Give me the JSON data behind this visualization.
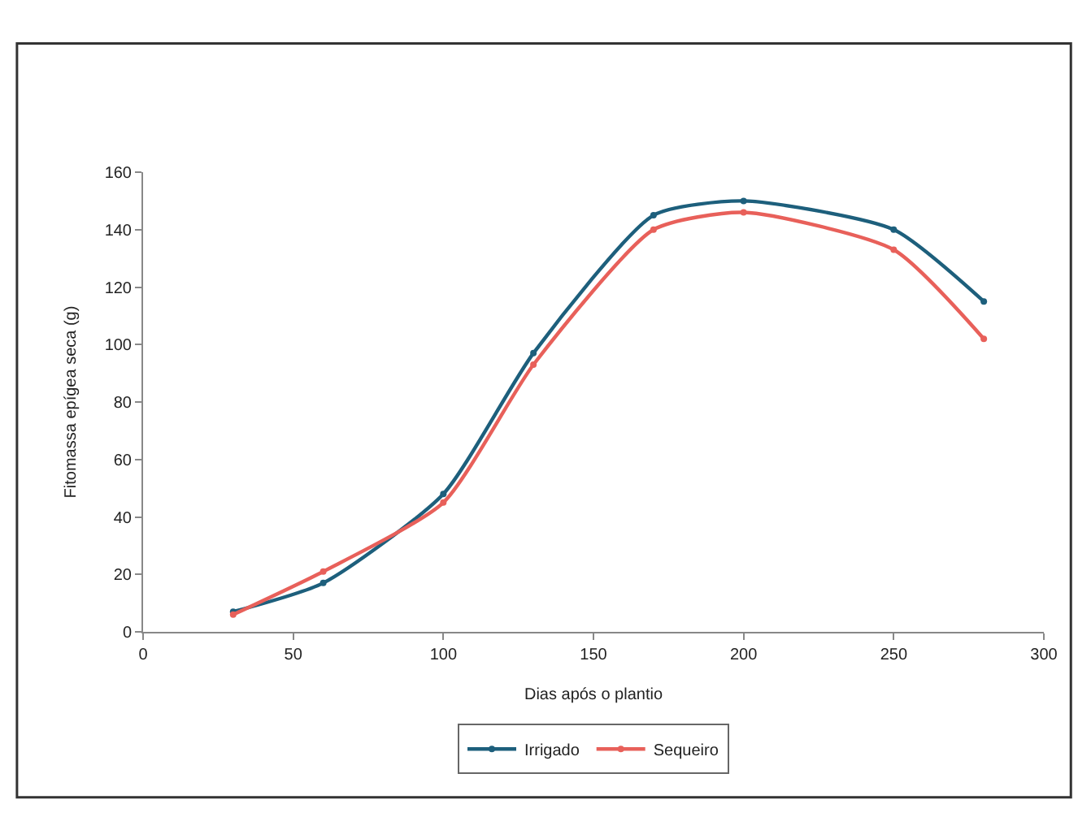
{
  "chart_data": {
    "type": "line",
    "xlabel": "Dias após o plantio",
    "ylabel": "Fitomassa epígea seca (g)",
    "xlim": [
      0,
      300
    ],
    "xticks": [
      0,
      50,
      100,
      150,
      200,
      250,
      300
    ],
    "ylim": [
      0,
      160
    ],
    "yticks": [
      0,
      20,
      40,
      60,
      80,
      100,
      120,
      140,
      160
    ],
    "legend": "bottom",
    "marker": "circle",
    "line_style": "solid",
    "series": [
      {
        "name": "Irrigado",
        "color": "#1d5f7c",
        "x": [
          30,
          60,
          100,
          130,
          170,
          200,
          250,
          280
        ],
        "values": [
          7,
          17,
          48,
          97,
          145,
          150,
          140,
          115
        ]
      },
      {
        "name": "Sequeiro",
        "color": "#e8605a",
        "x": [
          30,
          60,
          100,
          130,
          170,
          200,
          250,
          280
        ],
        "values": [
          6,
          21,
          45,
          93,
          140,
          146,
          133,
          102
        ]
      }
    ]
  }
}
